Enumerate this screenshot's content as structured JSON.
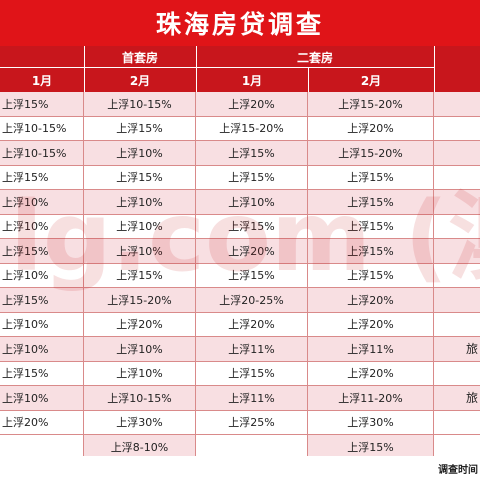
{
  "title": "珠海房贷调查",
  "header": {
    "group_first": "首套房",
    "group_second": "二套房",
    "months": [
      "1月",
      "2月",
      "1月",
      "2月"
    ]
  },
  "rows": [
    {
      "c1": "上浮15%",
      "c2": "上浮10-15%",
      "c3": "上浮20%",
      "c4": "上浮15-20%",
      "c5": ""
    },
    {
      "c1": "上浮10-15%",
      "c2": "上浮15%",
      "c3": "上浮15-20%",
      "c4": "上浮20%",
      "c5": ""
    },
    {
      "c1": "上浮10-15%",
      "c2": "上浮10%",
      "c3": "上浮15%",
      "c4": "上浮15-20%",
      "c5": ""
    },
    {
      "c1": "上浮15%",
      "c2": "上浮15%",
      "c3": "上浮15%",
      "c4": "上浮15%",
      "c5": ""
    },
    {
      "c1": "上浮10%",
      "c2": "上浮10%",
      "c3": "上浮10%",
      "c4": "上浮15%",
      "c5": ""
    },
    {
      "c1": "上浮10%",
      "c2": "上浮10%",
      "c3": "上浮15%",
      "c4": "上浮15%",
      "c5": ""
    },
    {
      "c1": "上浮15%",
      "c2": "上浮10%",
      "c3": "上浮20%",
      "c4": "上浮15%",
      "c5": ""
    },
    {
      "c1": "上浮10%",
      "c2": "上浮15%",
      "c3": "上浮15%",
      "c4": "上浮15%",
      "c5": ""
    },
    {
      "c1": "上浮15%",
      "c2": "上浮15-20%",
      "c3": "上浮20-25%",
      "c4": "上浮20%",
      "c5": ""
    },
    {
      "c1": "上浮10%",
      "c2": "上浮20%",
      "c3": "上浮20%",
      "c4": "上浮20%",
      "c5": ""
    },
    {
      "c1": "上浮10%",
      "c2": "上浮10%",
      "c3": "上浮11%",
      "c4": "上浮11%",
      "c5": "旅"
    },
    {
      "c1": "上浮15%",
      "c2": "上浮10%",
      "c3": "上浮15%",
      "c4": "上浮20%",
      "c5": ""
    },
    {
      "c1": "上浮10%",
      "c2": "上浮10-15%",
      "c3": "上浮11%",
      "c4": "上浮11-20%",
      "c5": "旅"
    },
    {
      "c1": "上浮20%",
      "c2": "上浮30%",
      "c3": "上浮25%",
      "c4": "上浮30%",
      "c5": ""
    },
    {
      "c1": "",
      "c2": "上浮8-10%",
      "c3": "",
      "c4": "上浮15%",
      "c5": ""
    }
  ],
  "footer": "调查时间",
  "watermark_text": "lg.com (澳",
  "colors": {
    "header_red": "#c8161c",
    "title_red": "#e01418",
    "stripe": "#f8dfe2"
  }
}
